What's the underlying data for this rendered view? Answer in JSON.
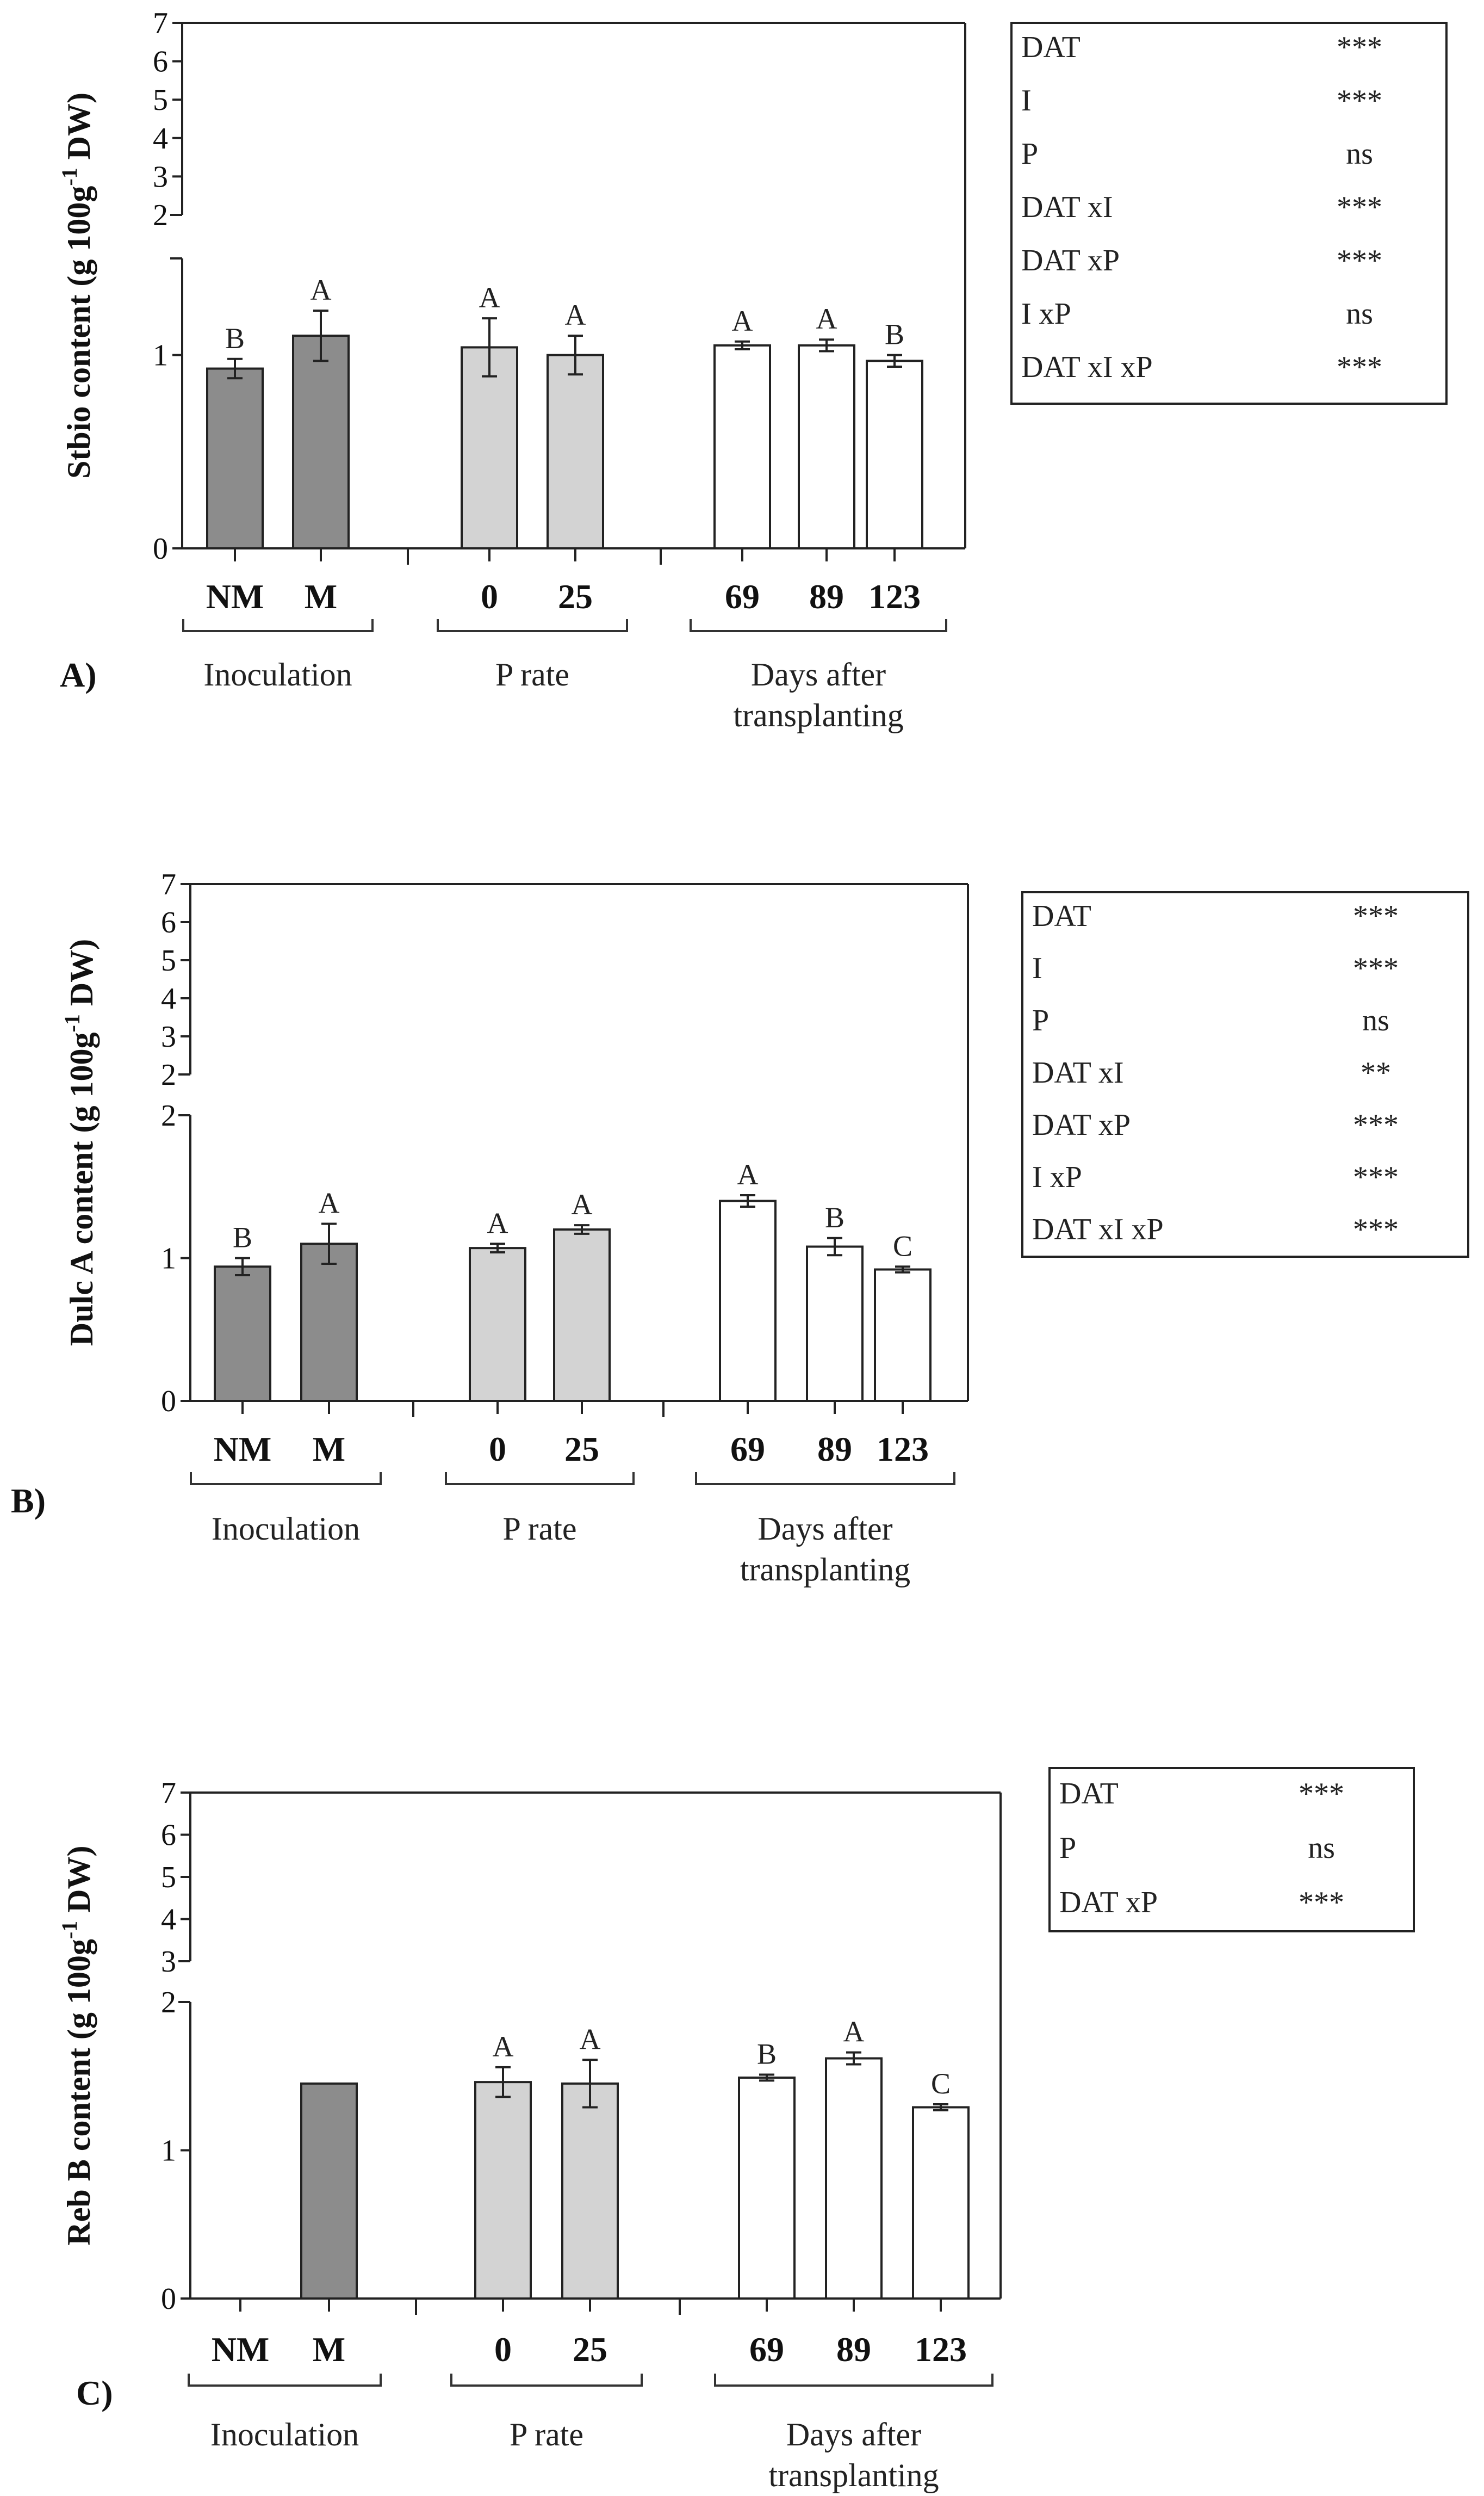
{
  "colors": {
    "inoculation": "#8c8c8c",
    "p_rate": "#d3d3d3",
    "days": "#ffffff",
    "stroke": "#222222"
  },
  "chart_data": [
    {
      "type": "bar",
      "panel": "A)",
      "ylabel_main": "Stbio content (g 100g",
      "ylabel_sup": "-1",
      "ylabel_end": " DW)",
      "ylim": [
        0,
        7
      ],
      "axis_break": [
        1.5,
        2
      ],
      "yticks_lower": [
        "0",
        "1"
      ],
      "yticks_upper": [
        "2",
        "3",
        "4",
        "5",
        "6",
        "7"
      ],
      "groups": [
        {
          "label": "Inoculation",
          "categories": [
            "NM",
            "M"
          ],
          "values": [
            0.93,
            1.1
          ],
          "errors": [
            0.05,
            0.13
          ],
          "letters": [
            "B",
            "A"
          ]
        },
        {
          "label": "P rate",
          "categories": [
            "0",
            "25"
          ],
          "values": [
            1.04,
            1.0
          ],
          "errors": [
            0.15,
            0.1
          ],
          "letters": [
            "A",
            "A"
          ]
        },
        {
          "label_lines": [
            "Days after",
            "transplanting"
          ],
          "categories": [
            "69",
            "89",
            "123"
          ],
          "values": [
            1.05,
            1.05,
            0.97
          ],
          "errors": [
            0.02,
            0.03,
            0.03
          ],
          "letters": [
            "A",
            "A",
            "B"
          ]
        }
      ],
      "stats": [
        {
          "term": "DAT",
          "sig": "***"
        },
        {
          "term": "I",
          "sig": "***"
        },
        {
          "term": "P",
          "sig": "ns"
        },
        {
          "term": "DAT xI",
          "sig": "***"
        },
        {
          "term": "DAT xP",
          "sig": "***"
        },
        {
          "term": "I xP",
          "sig": "ns"
        },
        {
          "term": "DAT xI xP",
          "sig": "***"
        }
      ]
    },
    {
      "type": "bar",
      "panel": "B)",
      "ylabel_main": "Dulc A content (g 100g",
      "ylabel_sup": "-1",
      "ylabel_end": " DW)",
      "ylim": [
        0,
        7
      ],
      "axis_break": [
        2,
        2
      ],
      "yticks_lower": [
        "0",
        "1",
        "2"
      ],
      "yticks_upper": [
        "2",
        "3",
        "4",
        "5",
        "6",
        "7"
      ],
      "groups": [
        {
          "label": "Inoculation",
          "categories": [
            "NM",
            "M"
          ],
          "values": [
            0.94,
            1.1
          ],
          "errors": [
            0.06,
            0.14
          ],
          "letters": [
            "B",
            "A"
          ]
        },
        {
          "label": "P rate",
          "categories": [
            "0",
            "25"
          ],
          "values": [
            1.07,
            1.2
          ],
          "errors": [
            0.03,
            0.03
          ],
          "letters": [
            "A",
            "A"
          ]
        },
        {
          "label_lines": [
            "Days after",
            "transplanting"
          ],
          "categories": [
            "69",
            "89",
            "123"
          ],
          "values": [
            1.4,
            1.08,
            0.92
          ],
          "errors": [
            0.04,
            0.06,
            0.02
          ],
          "letters": [
            "A",
            "B",
            "C"
          ]
        }
      ],
      "stats": [
        {
          "term": "DAT",
          "sig": "***"
        },
        {
          "term": "I",
          "sig": "***"
        },
        {
          "term": "P",
          "sig": "ns"
        },
        {
          "term": "DAT xI",
          "sig": "**"
        },
        {
          "term": "DAT xP",
          "sig": "***"
        },
        {
          "term": "I xP",
          "sig": "***"
        },
        {
          "term": "DAT xI xP",
          "sig": "***"
        }
      ]
    },
    {
      "type": "bar",
      "panel": "C)",
      "ylabel_main": "Reb B content (g 100g",
      "ylabel_sup": "-1",
      "ylabel_end": " DW)",
      "ylim": [
        0,
        7
      ],
      "axis_break": [
        2,
        3
      ],
      "yticks_lower": [
        "0",
        "1",
        "2"
      ],
      "yticks_upper": [
        "3",
        "4",
        "5",
        "6",
        "7"
      ],
      "groups": [
        {
          "label": "Inoculation",
          "categories": [
            "NM",
            "M"
          ],
          "values": [
            0,
            1.45
          ],
          "errors": [
            0,
            0
          ],
          "letters": [
            "",
            ""
          ]
        },
        {
          "label": "P rate",
          "categories": [
            "0",
            "25"
          ],
          "values": [
            1.46,
            1.45
          ],
          "errors": [
            0.1,
            0.16
          ],
          "letters": [
            "A",
            "A"
          ]
        },
        {
          "label_lines": [
            "Days after",
            "transplanting"
          ],
          "categories": [
            "69",
            "89",
            "123"
          ],
          "values": [
            1.49,
            1.62,
            1.29
          ],
          "errors": [
            0.02,
            0.04,
            0.02
          ],
          "letters": [
            "B",
            "A",
            "C"
          ]
        }
      ],
      "stats": [
        {
          "term": "DAT",
          "sig": "***"
        },
        {
          "term": "P",
          "sig": "ns"
        },
        {
          "term": "DAT xP",
          "sig": "***"
        }
      ]
    }
  ]
}
